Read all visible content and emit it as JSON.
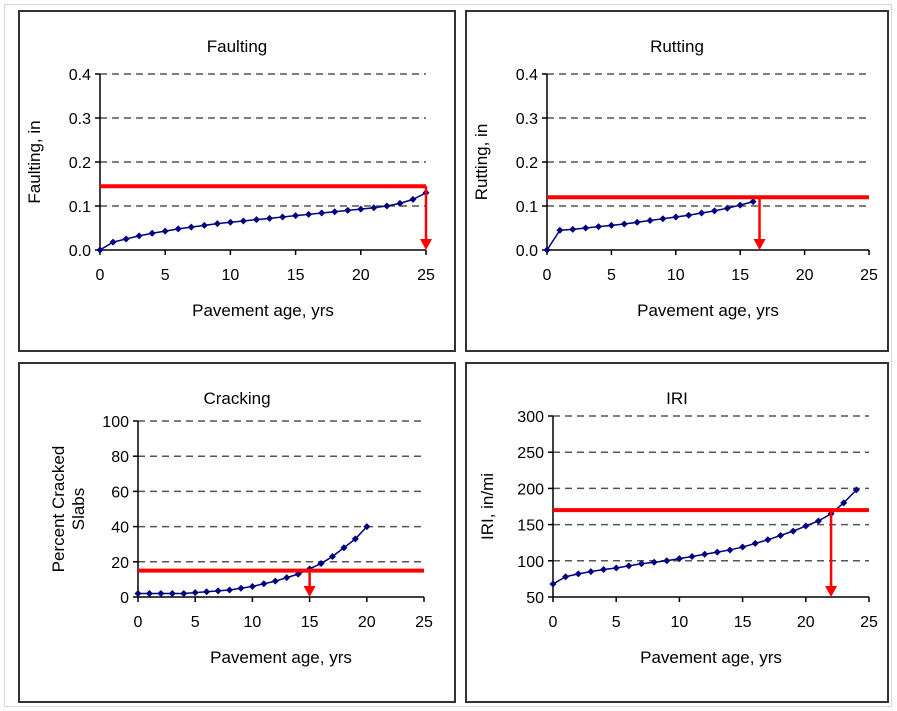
{
  "colors": {
    "series": "#000080",
    "threshold": "#ff0000",
    "grid": "#555555",
    "axis": "#000000"
  },
  "chart_data": [
    {
      "type": "line",
      "title": "Faulting",
      "xlabel": "Pavement age, yrs",
      "ylabel": "Faulting, in",
      "xlim": [
        0,
        25
      ],
      "ylim": [
        0,
        0.4
      ],
      "xticks": [
        0,
        5,
        10,
        15,
        20,
        25
      ],
      "yticks": [
        0.0,
        0.1,
        0.2,
        0.3,
        0.4
      ],
      "ytick_labels": [
        "0.0",
        "0.1",
        "0.2",
        "0.3",
        "0.4"
      ],
      "grid": "dashed horizontal",
      "series": [
        {
          "x": [
            0,
            1,
            2,
            3,
            4,
            5,
            6,
            7,
            8,
            9,
            10,
            11,
            12,
            13,
            14,
            15,
            16,
            17,
            18,
            19,
            20,
            21,
            22,
            23,
            24,
            25
          ],
          "y": [
            0.0,
            0.018,
            0.025,
            0.032,
            0.038,
            0.043,
            0.048,
            0.052,
            0.056,
            0.06,
            0.063,
            0.066,
            0.069,
            0.072,
            0.075,
            0.078,
            0.081,
            0.084,
            0.087,
            0.09,
            0.093,
            0.096,
            0.1,
            0.106,
            0.115,
            0.13
          ]
        }
      ],
      "threshold": {
        "y": 0.145,
        "x_from": 0,
        "x_to": 25,
        "arrow_x": 25
      }
    },
    {
      "type": "line",
      "title": "Rutting",
      "xlabel": "Pavement age, yrs",
      "ylabel": "Rutting, in",
      "xlim": [
        0,
        25
      ],
      "ylim": [
        0,
        0.4
      ],
      "xticks": [
        0,
        5,
        10,
        15,
        20,
        25
      ],
      "yticks": [
        0.0,
        0.1,
        0.2,
        0.3,
        0.4
      ],
      "ytick_labels": [
        "0.0",
        "0.1",
        "0.2",
        "0.3",
        "0.4"
      ],
      "grid": "dashed horizontal",
      "series": [
        {
          "x": [
            0,
            1,
            2,
            3,
            4,
            5,
            6,
            7,
            8,
            9,
            10,
            11,
            12,
            13,
            14,
            15,
            16
          ],
          "y": [
            0.0,
            0.045,
            0.047,
            0.05,
            0.053,
            0.056,
            0.059,
            0.063,
            0.067,
            0.071,
            0.075,
            0.079,
            0.084,
            0.089,
            0.095,
            0.102,
            0.11
          ]
        }
      ],
      "threshold": {
        "y": 0.12,
        "x_from": 0,
        "x_to": 25,
        "arrow_x": 16.5
      }
    },
    {
      "type": "line",
      "title": "Cracking",
      "xlabel": "Pavement age, yrs",
      "ylabel": "Percent Cracked Slabs",
      "ylabel_lines": [
        "Percent Cracked",
        "Slabs"
      ],
      "xlim": [
        0,
        25
      ],
      "ylim": [
        0,
        100
      ],
      "xticks": [
        0,
        5,
        10,
        15,
        20,
        25
      ],
      "yticks": [
        0,
        20,
        40,
        60,
        80,
        100
      ],
      "ytick_labels": [
        "0",
        "20",
        "40",
        "60",
        "80",
        "100"
      ],
      "grid": "dashed horizontal",
      "series": [
        {
          "x": [
            0,
            1,
            2,
            3,
            4,
            5,
            6,
            7,
            8,
            9,
            10,
            11,
            12,
            13,
            14,
            15,
            16,
            17,
            18,
            19,
            20
          ],
          "y": [
            2,
            2,
            2,
            2,
            2,
            2.5,
            3,
            3.5,
            4,
            5,
            6,
            7.5,
            9,
            11,
            13,
            16,
            19,
            23,
            28,
            33,
            40
          ]
        }
      ],
      "threshold": {
        "y": 15,
        "x_from": 0,
        "x_to": 25,
        "arrow_x": 15
      }
    },
    {
      "type": "line",
      "title": "IRI",
      "xlabel": "Pavement age, yrs",
      "ylabel": "IRI, in/mi",
      "xlim": [
        0,
        25
      ],
      "ylim": [
        50,
        300
      ],
      "xticks": [
        0,
        5,
        10,
        15,
        20,
        25
      ],
      "yticks": [
        50,
        100,
        150,
        200,
        250,
        300
      ],
      "ytick_labels": [
        "50",
        "100",
        "150",
        "200",
        "250",
        "300"
      ],
      "grid": "dashed horizontal",
      "series": [
        {
          "x": [
            0,
            1,
            2,
            3,
            4,
            5,
            6,
            7,
            8,
            9,
            10,
            11,
            12,
            13,
            14,
            15,
            16,
            17,
            18,
            19,
            20,
            21,
            22,
            23,
            24
          ],
          "y": [
            68,
            78,
            82,
            85,
            88,
            90,
            93,
            96,
            98,
            100,
            103,
            106,
            109,
            112,
            115,
            119,
            124,
            129,
            135,
            141,
            148,
            155,
            165,
            180,
            198
          ]
        }
      ],
      "threshold": {
        "y": 170,
        "x_from": 0,
        "x_to": 25,
        "arrow_x": 22
      }
    }
  ]
}
